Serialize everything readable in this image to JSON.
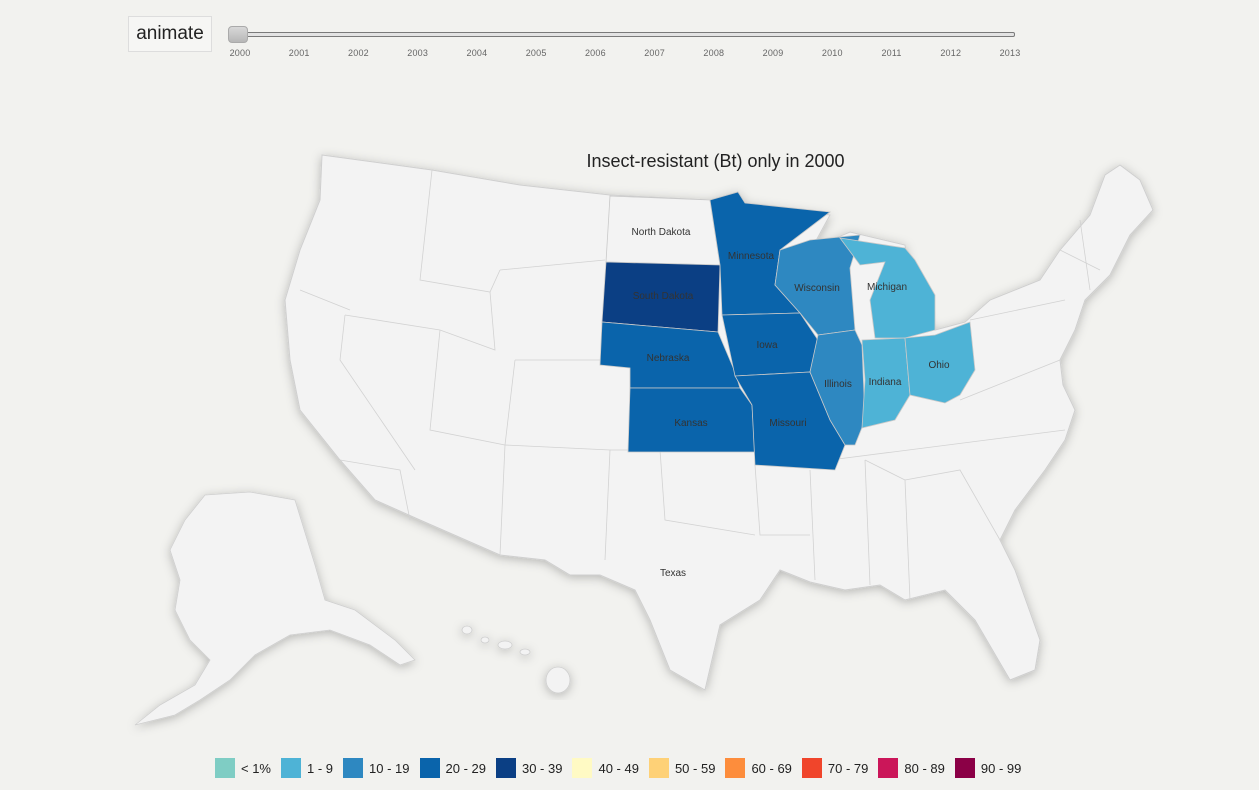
{
  "controls": {
    "animate_label": "animate",
    "slider_value": 2000,
    "years": [
      "2000",
      "2001",
      "2002",
      "2003",
      "2004",
      "2005",
      "2006",
      "2007",
      "2008",
      "2009",
      "2010",
      "2011",
      "2012",
      "2013"
    ]
  },
  "map": {
    "title": "Insect-resistant (Bt) only in 2000",
    "no_data_color": "#f3f3f3",
    "states": {
      "north_dakota": {
        "label": "North Dakota",
        "color": "#f3f3f3"
      },
      "south_dakota": {
        "label": "South Dakota",
        "color": "#0b3f84"
      },
      "nebraska": {
        "label": "Nebraska",
        "color": "#0a64ab"
      },
      "kansas": {
        "label": "Kansas",
        "color": "#0a64ab"
      },
      "minnesota": {
        "label": "Minnesota",
        "color": "#0a64ab"
      },
      "iowa": {
        "label": "Iowa",
        "color": "#0a64ab"
      },
      "missouri": {
        "label": "Missouri",
        "color": "#0a64ab"
      },
      "wisconsin": {
        "label": "Wisconsin",
        "color": "#2e88c1"
      },
      "illinois": {
        "label": "Illinois",
        "color": "#2e88c1"
      },
      "michigan": {
        "label": "Michigan",
        "color": "#4eb3d6"
      },
      "indiana": {
        "label": "Indiana",
        "color": "#4eb3d6"
      },
      "ohio": {
        "label": "Ohio",
        "color": "#4eb3d6"
      },
      "texas": {
        "label": "Texas",
        "color": "#f3f3f3"
      }
    }
  },
  "legend": [
    {
      "label": "< 1%",
      "color": "#7fcdc4"
    },
    {
      "label": "1 - 9",
      "color": "#4eb3d6"
    },
    {
      "label": "10 - 19",
      "color": "#2e88c1"
    },
    {
      "label": "20 - 29",
      "color": "#0a64ab"
    },
    {
      "label": "30 - 39",
      "color": "#0b3f84"
    },
    {
      "label": "40 - 49",
      "color": "#fffac4"
    },
    {
      "label": "50 - 59",
      "color": "#fed177"
    },
    {
      "label": "60 - 69",
      "color": "#fd8d3c"
    },
    {
      "label": "70 - 79",
      "color": "#f0452b"
    },
    {
      "label": "80 - 89",
      "color": "#cb1659"
    },
    {
      "label": "90 - 99",
      "color": "#8b0046"
    }
  ]
}
